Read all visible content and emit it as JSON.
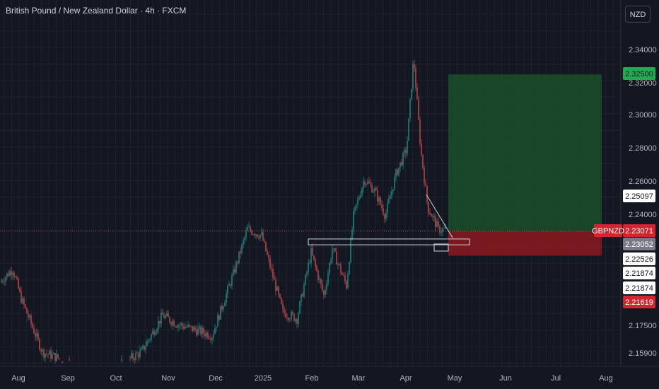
{
  "header": {
    "title": "British Pound / New Zealand Dollar · 4h · FXCM",
    "currency": "NZD"
  },
  "colors": {
    "background": "#131722",
    "up": "#26a69a",
    "down": "#ef5350",
    "profit_zone": "#1b4d2a",
    "loss_zone": "#8b1a1f",
    "axis_text": "#b2b5be"
  },
  "chart_data": {
    "type": "candlestick",
    "symbol": "GBPNZD",
    "x_ticks": [
      "Aug",
      "Sep",
      "Oct",
      "Nov",
      "Dec",
      "2025",
      "Feb",
      "Mar",
      "Apr",
      "May",
      "Jun",
      "Jul",
      "Aug"
    ],
    "y_ticks": [
      "2.34000",
      "2.32000",
      "2.30000",
      "2.28000",
      "2.26000",
      "2.24000",
      "2.17500",
      "2.15900"
    ],
    "price_series_approx": [
      [
        "Aug",
        2.2
      ],
      [
        "Aug",
        2.19
      ],
      [
        "Sep",
        2.16
      ],
      [
        "Oct",
        2.15
      ],
      [
        "Nov",
        2.16
      ],
      [
        "Nov",
        2.18
      ],
      [
        "Dec",
        2.17
      ],
      [
        "Dec",
        2.21
      ],
      [
        "2025",
        2.23
      ],
      [
        "2025",
        2.215
      ],
      [
        "2025",
        2.195
      ],
      [
        "Feb",
        2.22
      ],
      [
        "Feb",
        2.225
      ],
      [
        "Feb",
        2.2
      ],
      [
        "Mar",
        2.25
      ],
      [
        "Mar",
        2.26
      ],
      [
        "Mar",
        2.235
      ],
      [
        "Apr",
        2.27
      ],
      [
        "Apr",
        2.33
      ],
      [
        "Apr",
        2.25
      ],
      [
        "Apr",
        2.231
      ]
    ],
    "price_labels": [
      {
        "value": 2.325,
        "text": "2.32500",
        "style": "target"
      },
      {
        "value": 2.25097,
        "text": "2.25097",
        "style": "plain"
      },
      {
        "value": 2.23071,
        "text": "2.23071",
        "style": "current",
        "tag": "GBPNZD"
      },
      {
        "value": 2.23052,
        "text": "2.23052",
        "style": "gray"
      },
      {
        "value": 2.22526,
        "text": "2.22526",
        "style": "plain"
      },
      {
        "value": 2.21874,
        "text": "2.21874",
        "style": "plain"
      },
      {
        "value": 2.21874,
        "text": "2.21874",
        "style": "plain"
      },
      {
        "value": 2.21619,
        "text": "2.21619",
        "style": "stop"
      }
    ],
    "position": {
      "entry": 2.23071,
      "target": 2.325,
      "stop": 2.216,
      "start": "Apr",
      "end": "Aug"
    },
    "support_zone": {
      "low": 2.2225,
      "high": 2.226
    }
  }
}
